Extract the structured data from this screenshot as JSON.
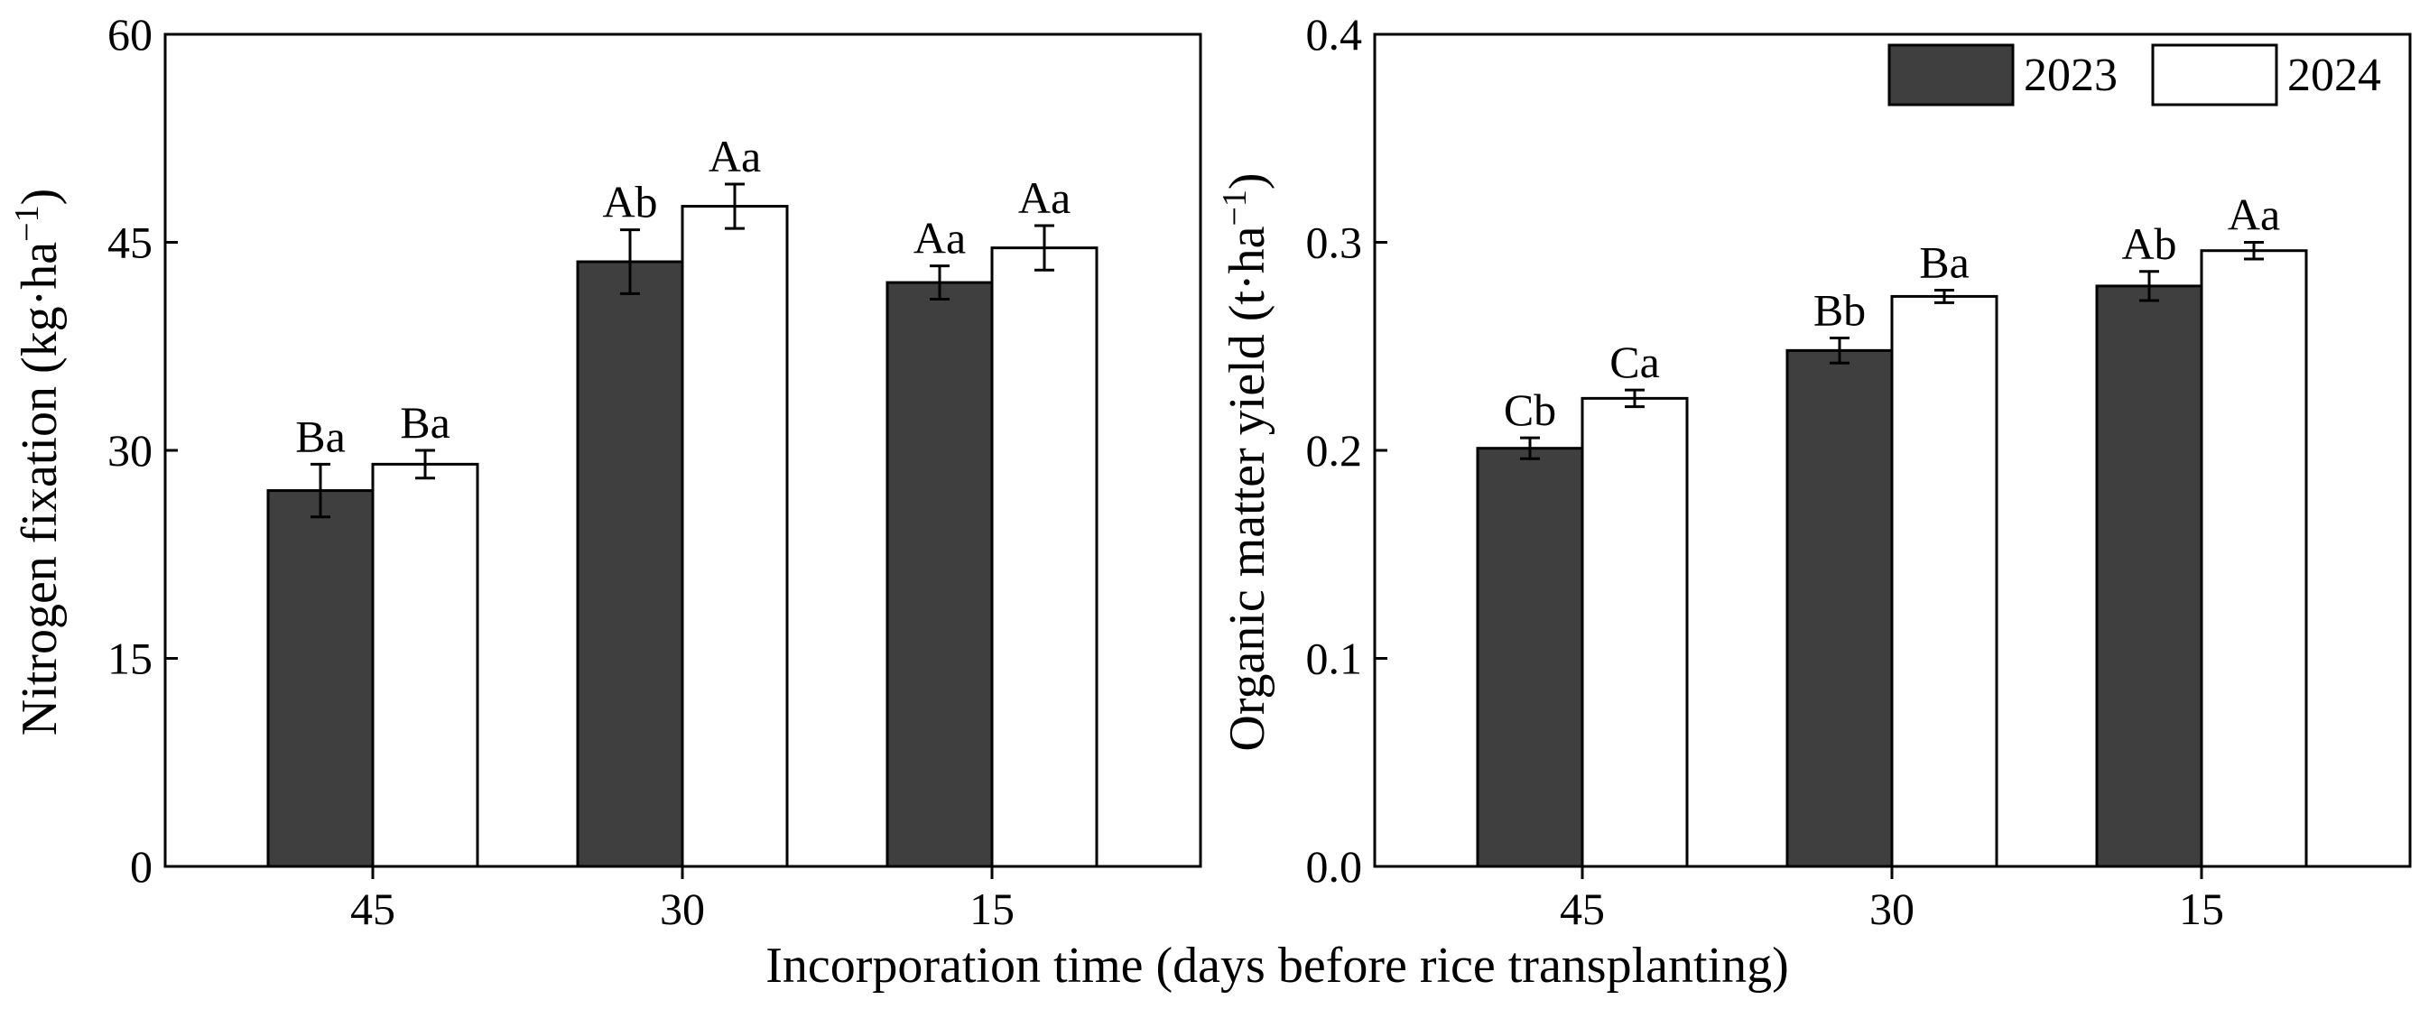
{
  "colors": {
    "series_2023": "#3f3f3f",
    "series_2024": "#ffffff",
    "axis": "#000000"
  },
  "legend": {
    "placement": "top-right",
    "entries": [
      "2023",
      "2024"
    ]
  },
  "xlabel": "Incorporation time (days before rice transplanting)",
  "chart_data": [
    {
      "type": "bar",
      "panel": "left",
      "title": "",
      "xlabel": "Incorporation time (days before rice transplanting)",
      "ylabel_main": "Nitrogen fixation (kg·ha",
      "ylabel_sup": "−1",
      "ylabel_end": ")",
      "ylim": [
        0,
        60
      ],
      "yticks": [
        0,
        15,
        30,
        45,
        60
      ],
      "ytick_labels": [
        "0",
        "15",
        "30",
        "45",
        "60"
      ],
      "categories": [
        "45",
        "30",
        "15"
      ],
      "series": [
        {
          "name": "2023",
          "values": [
            27.1,
            43.6,
            42.1
          ],
          "errors": [
            1.9,
            2.3,
            1.2
          ],
          "labels": [
            "Ba",
            "Ab",
            "Aa"
          ]
        },
        {
          "name": "2024",
          "values": [
            29.0,
            47.6,
            44.6
          ],
          "errors": [
            1.0,
            1.6,
            1.6
          ],
          "labels": [
            "Ba",
            "Aa",
            "Aa"
          ]
        }
      ],
      "legend": false
    },
    {
      "type": "bar",
      "panel": "right",
      "title": "",
      "xlabel": "Incorporation time (days before rice transplanting)",
      "ylabel_main": "Organic matter yield (t·ha",
      "ylabel_sup": "−1",
      "ylabel_end": ")",
      "ylim": [
        0,
        0.4
      ],
      "yticks": [
        0,
        0.1,
        0.2,
        0.3,
        0.4
      ],
      "ytick_labels": [
        "0.0",
        "0.1",
        "0.2",
        "0.3",
        "0.4"
      ],
      "categories": [
        "45",
        "30",
        "15"
      ],
      "series": [
        {
          "name": "2023",
          "values": [
            0.201,
            0.248,
            0.279
          ],
          "errors": [
            0.005,
            0.006,
            0.007
          ],
          "labels": [
            "Cb",
            "Bb",
            "Ab"
          ]
        },
        {
          "name": "2024",
          "values": [
            0.225,
            0.274,
            0.296
          ],
          "errors": [
            0.004,
            0.003,
            0.004
          ],
          "labels": [
            "Ca",
            "Ba",
            "Aa"
          ]
        }
      ],
      "legend": true
    }
  ]
}
